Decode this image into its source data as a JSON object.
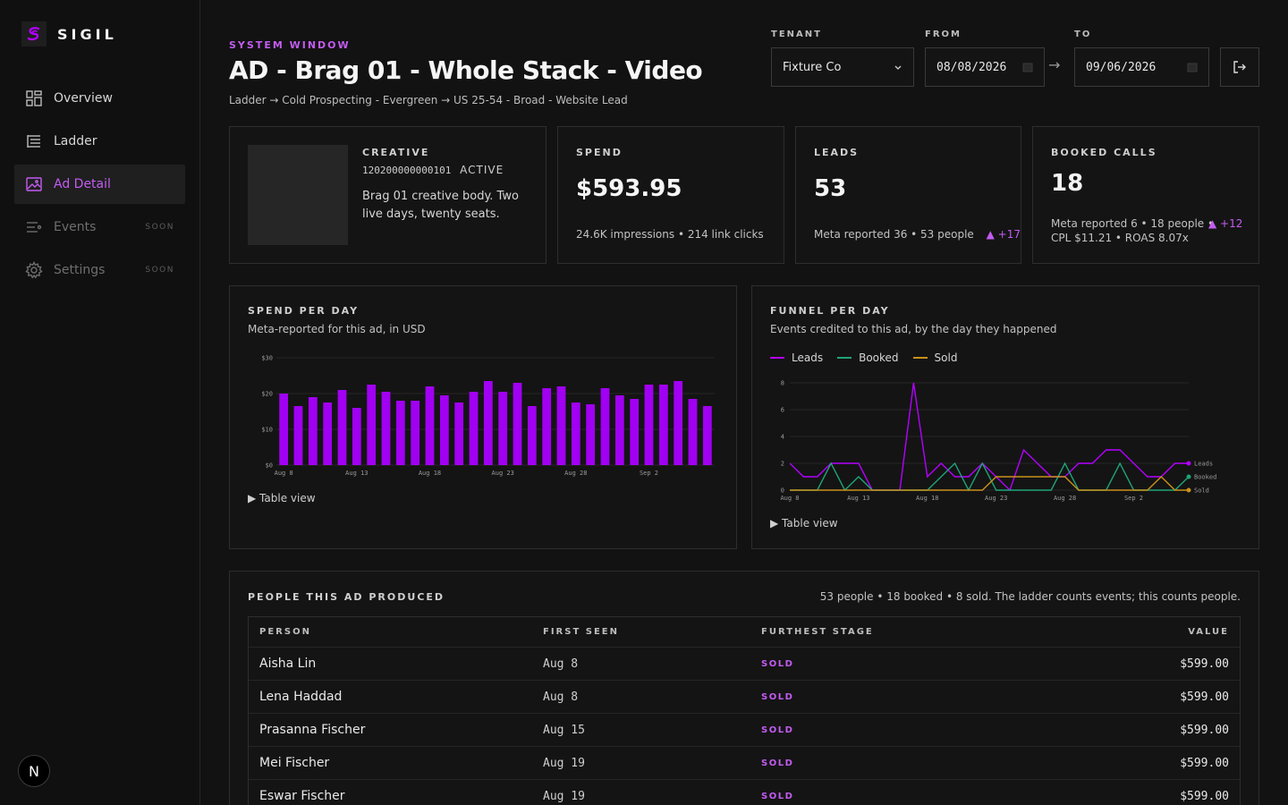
{
  "app": {
    "name": "SIGIL"
  },
  "sidebar": {
    "items": [
      {
        "label": "Overview",
        "icon": "grid-icon",
        "state": "normal"
      },
      {
        "label": "Ladder",
        "icon": "ladder-icon",
        "state": "normal"
      },
      {
        "label": "Ad Detail",
        "icon": "image-icon",
        "state": "active"
      },
      {
        "label": "Events",
        "icon": "list-icon",
        "state": "disabled",
        "badge": "SOON"
      },
      {
        "label": "Settings",
        "icon": "gear-icon",
        "state": "disabled",
        "badge": "SOON"
      }
    ],
    "user_badge": "N"
  },
  "header": {
    "eyebrow": "SYSTEM WINDOW",
    "title": "AD - Brag 01 - Whole Stack - Video",
    "breadcrumb": "Ladder → Cold Prospecting - Evergreen → US 25-54 - Broad - Website Lead"
  },
  "controls": {
    "tenant_label": "TENANT",
    "tenant_value": "Fixture Co",
    "from_label": "FROM",
    "from_value": "08/08/2026",
    "to_label": "TO",
    "to_value": "09/06/2026",
    "range_arrow": "→"
  },
  "creative": {
    "label": "CREATIVE",
    "id": "120200000000101",
    "status": "ACTIVE",
    "body": "Brag 01 creative body. Two live days, twenty seats."
  },
  "spend": {
    "label": "SPEND",
    "value": "$593.95",
    "sub": "24.6K impressions • 214 link clicks"
  },
  "leads": {
    "label": "LEADS",
    "value": "53",
    "sub": "Meta reported 36 • 53 people",
    "delta": "▲ +17"
  },
  "booked": {
    "label": "BOOKED CALLS",
    "value": "18",
    "sub1": "Meta reported 6 • 18 people •",
    "sub2": "CPL $11.21 • ROAS 8.07x",
    "delta": "▲ +12"
  },
  "spend_chart": {
    "title": "SPEND PER DAY",
    "subtitle": "Meta-reported for this ad, in USD",
    "table_toggle": "▶  Table view",
    "color": "#a100f2"
  },
  "funnel_chart": {
    "title": "FUNNEL PER DAY",
    "subtitle": "Events credited to this ad, by the day they happened",
    "table_toggle": "▶  Table view",
    "legend": [
      {
        "name": "Leads",
        "color": "#b300ff"
      },
      {
        "name": "Booked",
        "color": "#1ea37a"
      },
      {
        "name": "Sold",
        "color": "#c9901a"
      }
    ]
  },
  "people": {
    "title": "PEOPLE THIS AD PRODUCED",
    "summary": "53 people • 18 booked • 8 sold. The ladder counts events; this counts people.",
    "columns": [
      "PERSON",
      "FIRST SEEN",
      "FURTHEST STAGE",
      "VALUE"
    ],
    "rows": [
      {
        "person": "Aisha Lin",
        "first_seen": "Aug 8",
        "stage": "SOLD",
        "value": "$599.00"
      },
      {
        "person": "Lena Haddad",
        "first_seen": "Aug 8",
        "stage": "SOLD",
        "value": "$599.00"
      },
      {
        "person": "Prasanna Fischer",
        "first_seen": "Aug 15",
        "stage": "SOLD",
        "value": "$599.00"
      },
      {
        "person": "Mei Fischer",
        "first_seen": "Aug 19",
        "stage": "SOLD",
        "value": "$599.00"
      },
      {
        "person": "Eswar Fischer",
        "first_seen": "Aug 19",
        "stage": "SOLD",
        "value": "$599.00"
      }
    ]
  },
  "chart_data": [
    {
      "type": "bar",
      "title": "SPEND PER DAY",
      "xlabel": "",
      "ylabel": "",
      "ylim": [
        0,
        30
      ],
      "yticks": [
        "$0",
        "$10",
        "$20",
        "$30"
      ],
      "xticks": [
        "Aug 8",
        "Aug 13",
        "Aug 18",
        "Aug 23",
        "Aug 28",
        "Sep 2"
      ],
      "categories": [
        "Aug 8",
        "Aug 9",
        "Aug 10",
        "Aug 11",
        "Aug 12",
        "Aug 13",
        "Aug 14",
        "Aug 15",
        "Aug 16",
        "Aug 17",
        "Aug 18",
        "Aug 19",
        "Aug 20",
        "Aug 21",
        "Aug 22",
        "Aug 23",
        "Aug 24",
        "Aug 25",
        "Aug 26",
        "Aug 27",
        "Aug 28",
        "Aug 29",
        "Aug 30",
        "Aug 31",
        "Sep 1",
        "Sep 2",
        "Sep 3",
        "Sep 4",
        "Sep 5",
        "Sep 6"
      ],
      "values": [
        20,
        16.5,
        19,
        17.5,
        21,
        16,
        22.5,
        20.5,
        18,
        18,
        22,
        19.5,
        17.5,
        20.5,
        23.5,
        20.5,
        23,
        16.5,
        21.5,
        22,
        17.5,
        17,
        21.5,
        19.5,
        18.5,
        22.5,
        22.5,
        23.5,
        18.5,
        16.5
      ]
    },
    {
      "type": "line",
      "title": "FUNNEL PER DAY",
      "ylim": [
        0,
        8
      ],
      "yticks": [
        "0",
        "2",
        "4",
        "6",
        "8"
      ],
      "xticks": [
        "Aug 8",
        "Aug 13",
        "Aug 18",
        "Aug 23",
        "Aug 28",
        "Sep 2"
      ],
      "x": [
        "Aug 8",
        "Aug 9",
        "Aug 10",
        "Aug 11",
        "Aug 12",
        "Aug 13",
        "Aug 14",
        "Aug 15",
        "Aug 16",
        "Aug 17",
        "Aug 18",
        "Aug 19",
        "Aug 20",
        "Aug 21",
        "Aug 22",
        "Aug 23",
        "Aug 24",
        "Aug 25",
        "Aug 26",
        "Aug 27",
        "Aug 28",
        "Aug 29",
        "Aug 30",
        "Aug 31",
        "Sep 1",
        "Sep 2",
        "Sep 3",
        "Sep 4",
        "Sep 5",
        "Sep 6"
      ],
      "series": [
        {
          "name": "Leads",
          "color": "#b300ff",
          "values": [
            2,
            1,
            1,
            2,
            2,
            2,
            0,
            0,
            0,
            8,
            1,
            2,
            1,
            1,
            2,
            1,
            0,
            3,
            2,
            1,
            1,
            2,
            2,
            3,
            3,
            2,
            1,
            1,
            2,
            2
          ]
        },
        {
          "name": "Booked",
          "color": "#1ea37a",
          "values": [
            0,
            0,
            0,
            2,
            0,
            1,
            0,
            0,
            0,
            0,
            0,
            1,
            2,
            0,
            2,
            0,
            0,
            0,
            0,
            0,
            2,
            0,
            0,
            0,
            2,
            0,
            0,
            0,
            0,
            1
          ]
        },
        {
          "name": "Sold",
          "color": "#c9901a",
          "values": [
            0,
            0,
            0,
            0,
            0,
            0,
            0,
            0,
            0,
            0,
            0,
            0,
            0,
            0,
            0,
            1,
            1,
            1,
            1,
            1,
            1,
            0,
            0,
            0,
            0,
            0,
            0,
            1,
            0,
            0
          ]
        }
      ]
    }
  ]
}
